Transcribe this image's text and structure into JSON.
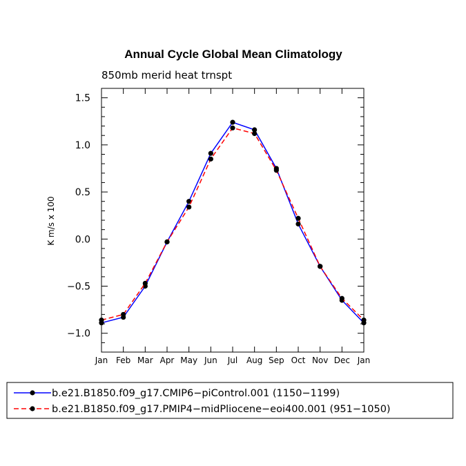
{
  "chart_data": {
    "type": "line",
    "title": "Annual Cycle Global Mean Climatology",
    "subtitle": "850mb merid heat trnspt",
    "ylabel": "K m/s x 100",
    "xlabel": "",
    "ylim": [
      -1.2,
      1.6
    ],
    "yticks": [
      -1.0,
      -0.5,
      0.0,
      0.5,
      1.0,
      1.5
    ],
    "ytick_labels": [
      "−1.0",
      "−0.5",
      "0.0",
      "0.5",
      "1.0",
      "1.5"
    ],
    "categories": [
      "Jan",
      "Feb",
      "Mar",
      "Apr",
      "May",
      "Jun",
      "Jul",
      "Aug",
      "Sep",
      "Oct",
      "Nov",
      "Dec",
      "Jan"
    ],
    "series": [
      {
        "name": "b.e21.B1850.f09_g17.CMIP6−piControl.001 (1150−1199)",
        "color": "#0000ff",
        "dash": "solid",
        "values": [
          -0.89,
          -0.83,
          -0.5,
          -0.03,
          0.4,
          0.91,
          1.24,
          1.16,
          0.75,
          0.16,
          -0.29,
          -0.65,
          -0.89
        ]
      },
      {
        "name": "b.e21.B1850.f09_g17.PMIP4−midPliocene−eoi400.001 (951−1050)",
        "color": "#ff0000",
        "dash": "dashed",
        "values": [
          -0.86,
          -0.8,
          -0.47,
          -0.03,
          0.34,
          0.85,
          1.18,
          1.12,
          0.73,
          0.22,
          -0.29,
          -0.63,
          -0.86
        ]
      }
    ],
    "legend_position": "bottom"
  }
}
